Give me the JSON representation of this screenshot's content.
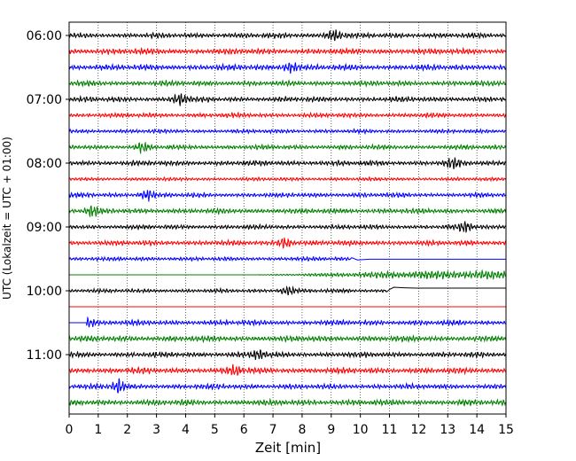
{
  "chart_data": {
    "type": "line",
    "xlabel": "Zeit  [min]",
    "ylabel": "UTC (Lokalzeit = UTC + 01:00)",
    "xlim": [
      0,
      15
    ],
    "x_ticks": [
      0,
      1,
      2,
      3,
      4,
      5,
      6,
      7,
      8,
      9,
      10,
      11,
      12,
      13,
      14,
      15
    ],
    "y_ticks": [
      {
        "label": "06:00",
        "trace": 0
      },
      {
        "label": "07:00",
        "trace": 4
      },
      {
        "label": "08:00",
        "trace": 8
      },
      {
        "label": "09:00",
        "trace": 12
      },
      {
        "label": "10:00",
        "trace": 16
      },
      {
        "label": "11:00",
        "trace": 20
      }
    ],
    "grid": "vertical dotted",
    "color_cycle": [
      "#000000",
      "#ff0000",
      "#0000ff",
      "#008000"
    ],
    "traces": [
      {
        "start": "06:00",
        "color": "#000000",
        "amp": 0.9,
        "events": [
          {
            "x": 9.1,
            "amp": 1.6
          }
        ]
      },
      {
        "start": "06:15",
        "color": "#ff0000",
        "amp": 1.0,
        "events": []
      },
      {
        "start": "06:30",
        "color": "#0000ff",
        "amp": 1.0,
        "events": [
          {
            "x": 7.6,
            "amp": 1.5
          }
        ]
      },
      {
        "start": "06:45",
        "color": "#008000",
        "amp": 0.9,
        "events": []
      },
      {
        "start": "07:00",
        "color": "#000000",
        "amp": 0.9,
        "events": [
          {
            "x": 3.8,
            "amp": 1.5
          }
        ]
      },
      {
        "start": "07:15",
        "color": "#ff0000",
        "amp": 0.8,
        "events": []
      },
      {
        "start": "07:30",
        "color": "#0000ff",
        "amp": 0.7,
        "events": []
      },
      {
        "start": "07:45",
        "color": "#008000",
        "amp": 0.8,
        "events": [
          {
            "x": 2.5,
            "amp": 1.3
          }
        ]
      },
      {
        "start": "08:00",
        "color": "#000000",
        "amp": 0.9,
        "events": [
          {
            "x": 13.2,
            "amp": 1.4
          }
        ]
      },
      {
        "start": "08:15",
        "color": "#ff0000",
        "amp": 0.6,
        "events": []
      },
      {
        "start": "08:30",
        "color": "#0000ff",
        "amp": 0.8,
        "events": [
          {
            "x": 2.7,
            "amp": 1.4
          }
        ]
      },
      {
        "start": "08:45",
        "color": "#008000",
        "amp": 0.9,
        "events": [
          {
            "x": 0.8,
            "amp": 1.5
          }
        ]
      },
      {
        "start": "09:00",
        "color": "#000000",
        "amp": 0.8,
        "events": [
          {
            "x": 13.6,
            "amp": 1.4
          }
        ]
      },
      {
        "start": "09:15",
        "color": "#ff0000",
        "amp": 0.9,
        "events": [
          {
            "x": 7.4,
            "amp": 1.6
          }
        ]
      },
      {
        "start": "09:30",
        "color": "#0000ff",
        "amp": 0.7,
        "end": 9.7,
        "events": []
      },
      {
        "start": "09:45",
        "color": "#008000",
        "amp": 0.0,
        "start_x": 6.3,
        "ramp_amp": 1.4,
        "events": []
      },
      {
        "start": "10:00",
        "color": "#000000",
        "amp": 0.7,
        "end": 10.9,
        "events": [
          {
            "x": 7.5,
            "amp": 1.3
          }
        ],
        "drop": 1
      },
      {
        "start": "10:15",
        "color": "#ff0000",
        "amp": 0.0,
        "events": []
      },
      {
        "start": "10:30",
        "color": "#0000ff",
        "amp": 0.9,
        "start_x": 0.6,
        "events": [
          {
            "x": 0.7,
            "amp": 1.2
          }
        ]
      },
      {
        "start": "10:45",
        "color": "#008000",
        "amp": 1.0,
        "events": []
      },
      {
        "start": "11:00",
        "color": "#000000",
        "amp": 0.9,
        "events": [
          {
            "x": 6.5,
            "amp": 1.4
          }
        ]
      },
      {
        "start": "11:15",
        "color": "#ff0000",
        "amp": 1.0,
        "events": [
          {
            "x": 5.7,
            "amp": 1.3
          }
        ]
      },
      {
        "start": "11:30",
        "color": "#0000ff",
        "amp": 0.9,
        "events": [
          {
            "x": 1.7,
            "amp": 1.7
          }
        ]
      },
      {
        "start": "11:45",
        "color": "#008000",
        "amp": 1.0,
        "events": []
      }
    ]
  }
}
